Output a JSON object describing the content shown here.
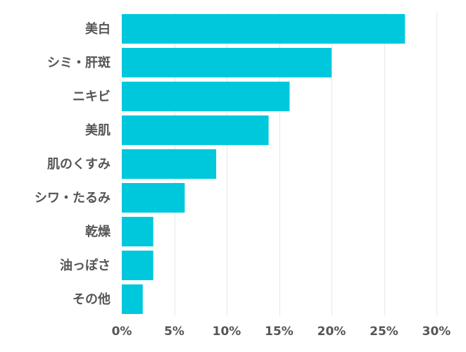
{
  "chart_data": {
    "type": "bar",
    "orientation": "horizontal",
    "categories": [
      "美白",
      "シミ・肝斑",
      "ニキビ",
      "美肌",
      "肌のくすみ",
      "シワ・たるみ",
      "乾燥",
      "油っぽさ",
      "その他"
    ],
    "values": [
      27,
      20,
      16,
      14,
      9,
      6,
      3,
      3,
      2
    ],
    "xlim": [
      0,
      30
    ],
    "xticks": [
      0,
      5,
      10,
      15,
      20,
      25,
      30
    ],
    "tick_labels": [
      "0%",
      "5%",
      "10%",
      "15%",
      "20%",
      "25%",
      "30%"
    ],
    "bar_color": "#00c8dc",
    "grid": true
  }
}
